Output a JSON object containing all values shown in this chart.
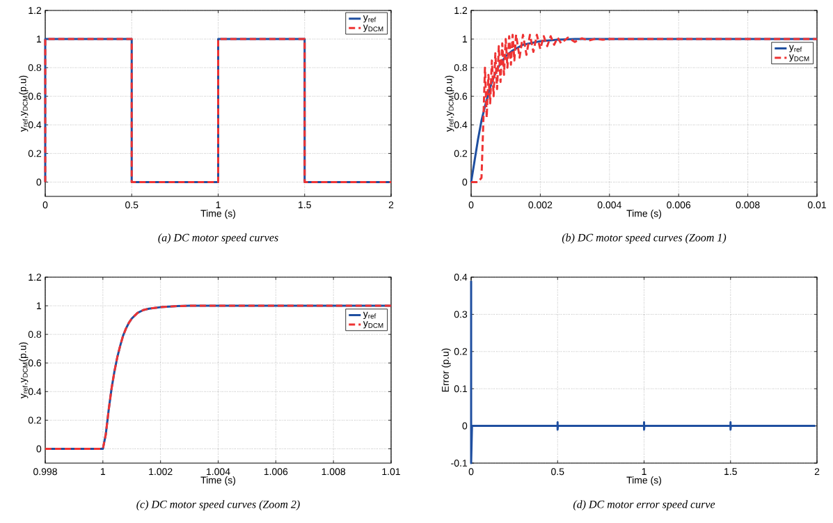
{
  "chart_data": [
    {
      "type": "line",
      "xlabel": "Time (s)",
      "ylabel": "y$_{ref}$,y$_{DCM}$(p.u)",
      "xlim": [
        0,
        2
      ],
      "ylim": [
        -0.1,
        1.2
      ],
      "xticks": [
        0,
        0.5,
        1,
        1.5,
        2
      ],
      "yticks": [
        0,
        0.2,
        0.4,
        0.6,
        0.8,
        1,
        1.2
      ],
      "grid": true,
      "legend": "top right",
      "annotations": [
        "(a) DC motor speed curves"
      ],
      "series": [
        {
          "name": "y$_{ref}$",
          "color": "#1f4fa0",
          "line_style": "solid",
          "x": [
            0,
            0,
            0.5,
            0.5,
            1,
            1,
            1.5,
            1.5,
            2
          ],
          "values": [
            0,
            1,
            1,
            0,
            0,
            1,
            1,
            0,
            0
          ]
        },
        {
          "name": "y$_{DCM}$",
          "color": "#ee3333",
          "line_style": "dashed",
          "x": [
            0,
            0,
            0.5,
            0.5,
            1,
            1,
            1.5,
            1.5,
            2
          ],
          "values": [
            0,
            1,
            1,
            0,
            0,
            1,
            1,
            0,
            0
          ]
        }
      ]
    },
    {
      "type": "line",
      "xlabel": "Time (s)",
      "ylabel": "y$_{ref}$,y$_{DCM}$(p.u)",
      "xlim": [
        0,
        0.01
      ],
      "ylim": [
        -0.1,
        1.2
      ],
      "xticks": [
        0,
        0.002,
        0.004,
        0.006,
        0.008,
        0.01
      ],
      "yticks": [
        0,
        0.2,
        0.4,
        0.6,
        0.8,
        1,
        1.2
      ],
      "grid": true,
      "legend": "right",
      "annotations": [
        "(b) DC motor speed curves (Zoom 1)"
      ],
      "series": [
        {
          "name": "y$_{ref}$",
          "color": "#1f4fa0",
          "line_style": "solid",
          "x": [
            0,
            0.0001,
            0.0002,
            0.0003,
            0.0004,
            0.0005,
            0.0006,
            0.0007,
            0.0008,
            0.001,
            0.0012,
            0.0015,
            0.002,
            0.0025,
            0.003,
            0.01
          ],
          "values": [
            0,
            0.15,
            0.3,
            0.43,
            0.53,
            0.62,
            0.7,
            0.76,
            0.81,
            0.88,
            0.92,
            0.96,
            0.985,
            0.995,
            1,
            1
          ]
        },
        {
          "name": "y$_{DCM}$",
          "color": "#ee3333",
          "line_style": "dashed",
          "x": [
            0,
            0.0002,
            0.0003,
            0.00035,
            0.0004,
            0.00045,
            0.0005,
            0.00055,
            0.0006,
            0.00065,
            0.0007,
            0.00075,
            0.0008,
            0.00085,
            0.0009,
            0.00095,
            0.001,
            0.00105,
            0.0011,
            0.00115,
            0.0012,
            0.00125,
            0.0013,
            0.0014,
            0.0015,
            0.0016,
            0.0017,
            0.0018,
            0.0019,
            0.002,
            0.0021,
            0.0022,
            0.0023,
            0.0024,
            0.0025,
            0.0026,
            0.0028,
            0.003,
            0.0032,
            0.0034,
            0.0036,
            0.0038,
            0.004,
            0.01
          ],
          "values": [
            0,
            0,
            0.03,
            0.4,
            0.8,
            0.45,
            0.75,
            0.55,
            0.85,
            0.6,
            0.9,
            0.65,
            0.95,
            0.7,
            0.97,
            0.75,
            1,
            0.8,
            1.02,
            0.82,
            1.03,
            0.85,
            1.03,
            0.87,
            1.03,
            0.89,
            1.03,
            0.91,
            1.03,
            0.93,
            1.02,
            0.95,
            1.02,
            0.96,
            1.01,
            0.97,
            1.01,
            0.98,
            1.005,
            0.99,
            1.002,
            0.995,
            1,
            1
          ]
        }
      ]
    },
    {
      "type": "line",
      "xlabel": "Time (s)",
      "ylabel": "y$_{ref}$,y$_{DCM}$(p.u)",
      "xlim": [
        0.998,
        1.01
      ],
      "ylim": [
        -0.1,
        1.2
      ],
      "xticks": [
        0.998,
        1,
        1.002,
        1.004,
        1.006,
        1.008,
        1.01
      ],
      "yticks": [
        0,
        0.2,
        0.4,
        0.6,
        0.8,
        1,
        1.2
      ],
      "grid": true,
      "legend": "right",
      "annotations": [
        "(c) DC motor speed curves (Zoom 2)"
      ],
      "series": [
        {
          "name": "y$_{ref}$",
          "color": "#1f4fa0",
          "line_style": "solid",
          "x": [
            0.998,
            1,
            1.0001,
            1.0002,
            1.0003,
            1.0004,
            1.0005,
            1.0006,
            1.0007,
            1.0008,
            1.0009,
            1.001,
            1.0012,
            1.0014,
            1.0016,
            1.002,
            1.0025,
            1.003,
            1.01
          ],
          "values": [
            0,
            0,
            0.1,
            0.27,
            0.42,
            0.54,
            0.64,
            0.72,
            0.79,
            0.84,
            0.88,
            0.91,
            0.95,
            0.97,
            0.98,
            0.99,
            0.997,
            1,
            1
          ]
        },
        {
          "name": "y$_{DCM}$",
          "color": "#ee3333",
          "line_style": "dashed",
          "x": [
            0.998,
            1,
            1.0001,
            1.0002,
            1.0003,
            1.0004,
            1.0005,
            1.0006,
            1.0007,
            1.0008,
            1.0009,
            1.001,
            1.0012,
            1.0014,
            1.0016,
            1.002,
            1.0025,
            1.003,
            1.01
          ],
          "values": [
            0,
            0,
            0.1,
            0.27,
            0.42,
            0.54,
            0.64,
            0.72,
            0.79,
            0.84,
            0.88,
            0.91,
            0.95,
            0.97,
            0.98,
            0.99,
            0.997,
            1,
            1
          ]
        }
      ]
    },
    {
      "type": "line",
      "xlabel": "Time (s)",
      "ylabel": "Error (p.u)",
      "xlim": [
        0,
        2
      ],
      "ylim": [
        -0.1,
        0.4
      ],
      "xticks": [
        0,
        0.5,
        1,
        1.5,
        2
      ],
      "yticks": [
        -0.1,
        0,
        0.1,
        0.2,
        0.3,
        0.4
      ],
      "grid": true,
      "annotations": [
        "(d) DC motor error speed curve"
      ],
      "series": [
        {
          "color": "#1f4fa0",
          "line_style": "solid",
          "x": [
            0,
            0,
            0.005,
            0.5,
            0.5,
            0.5,
            0.502,
            1,
            1,
            1,
            1.002,
            1.5,
            1.5,
            1.5,
            1.502,
            1.99
          ],
          "values": [
            0.39,
            -0.1,
            0,
            0,
            0.01,
            -0.01,
            0,
            0,
            0.01,
            -0.01,
            0,
            0,
            0.01,
            -0.01,
            0,
            0
          ]
        }
      ]
    }
  ]
}
